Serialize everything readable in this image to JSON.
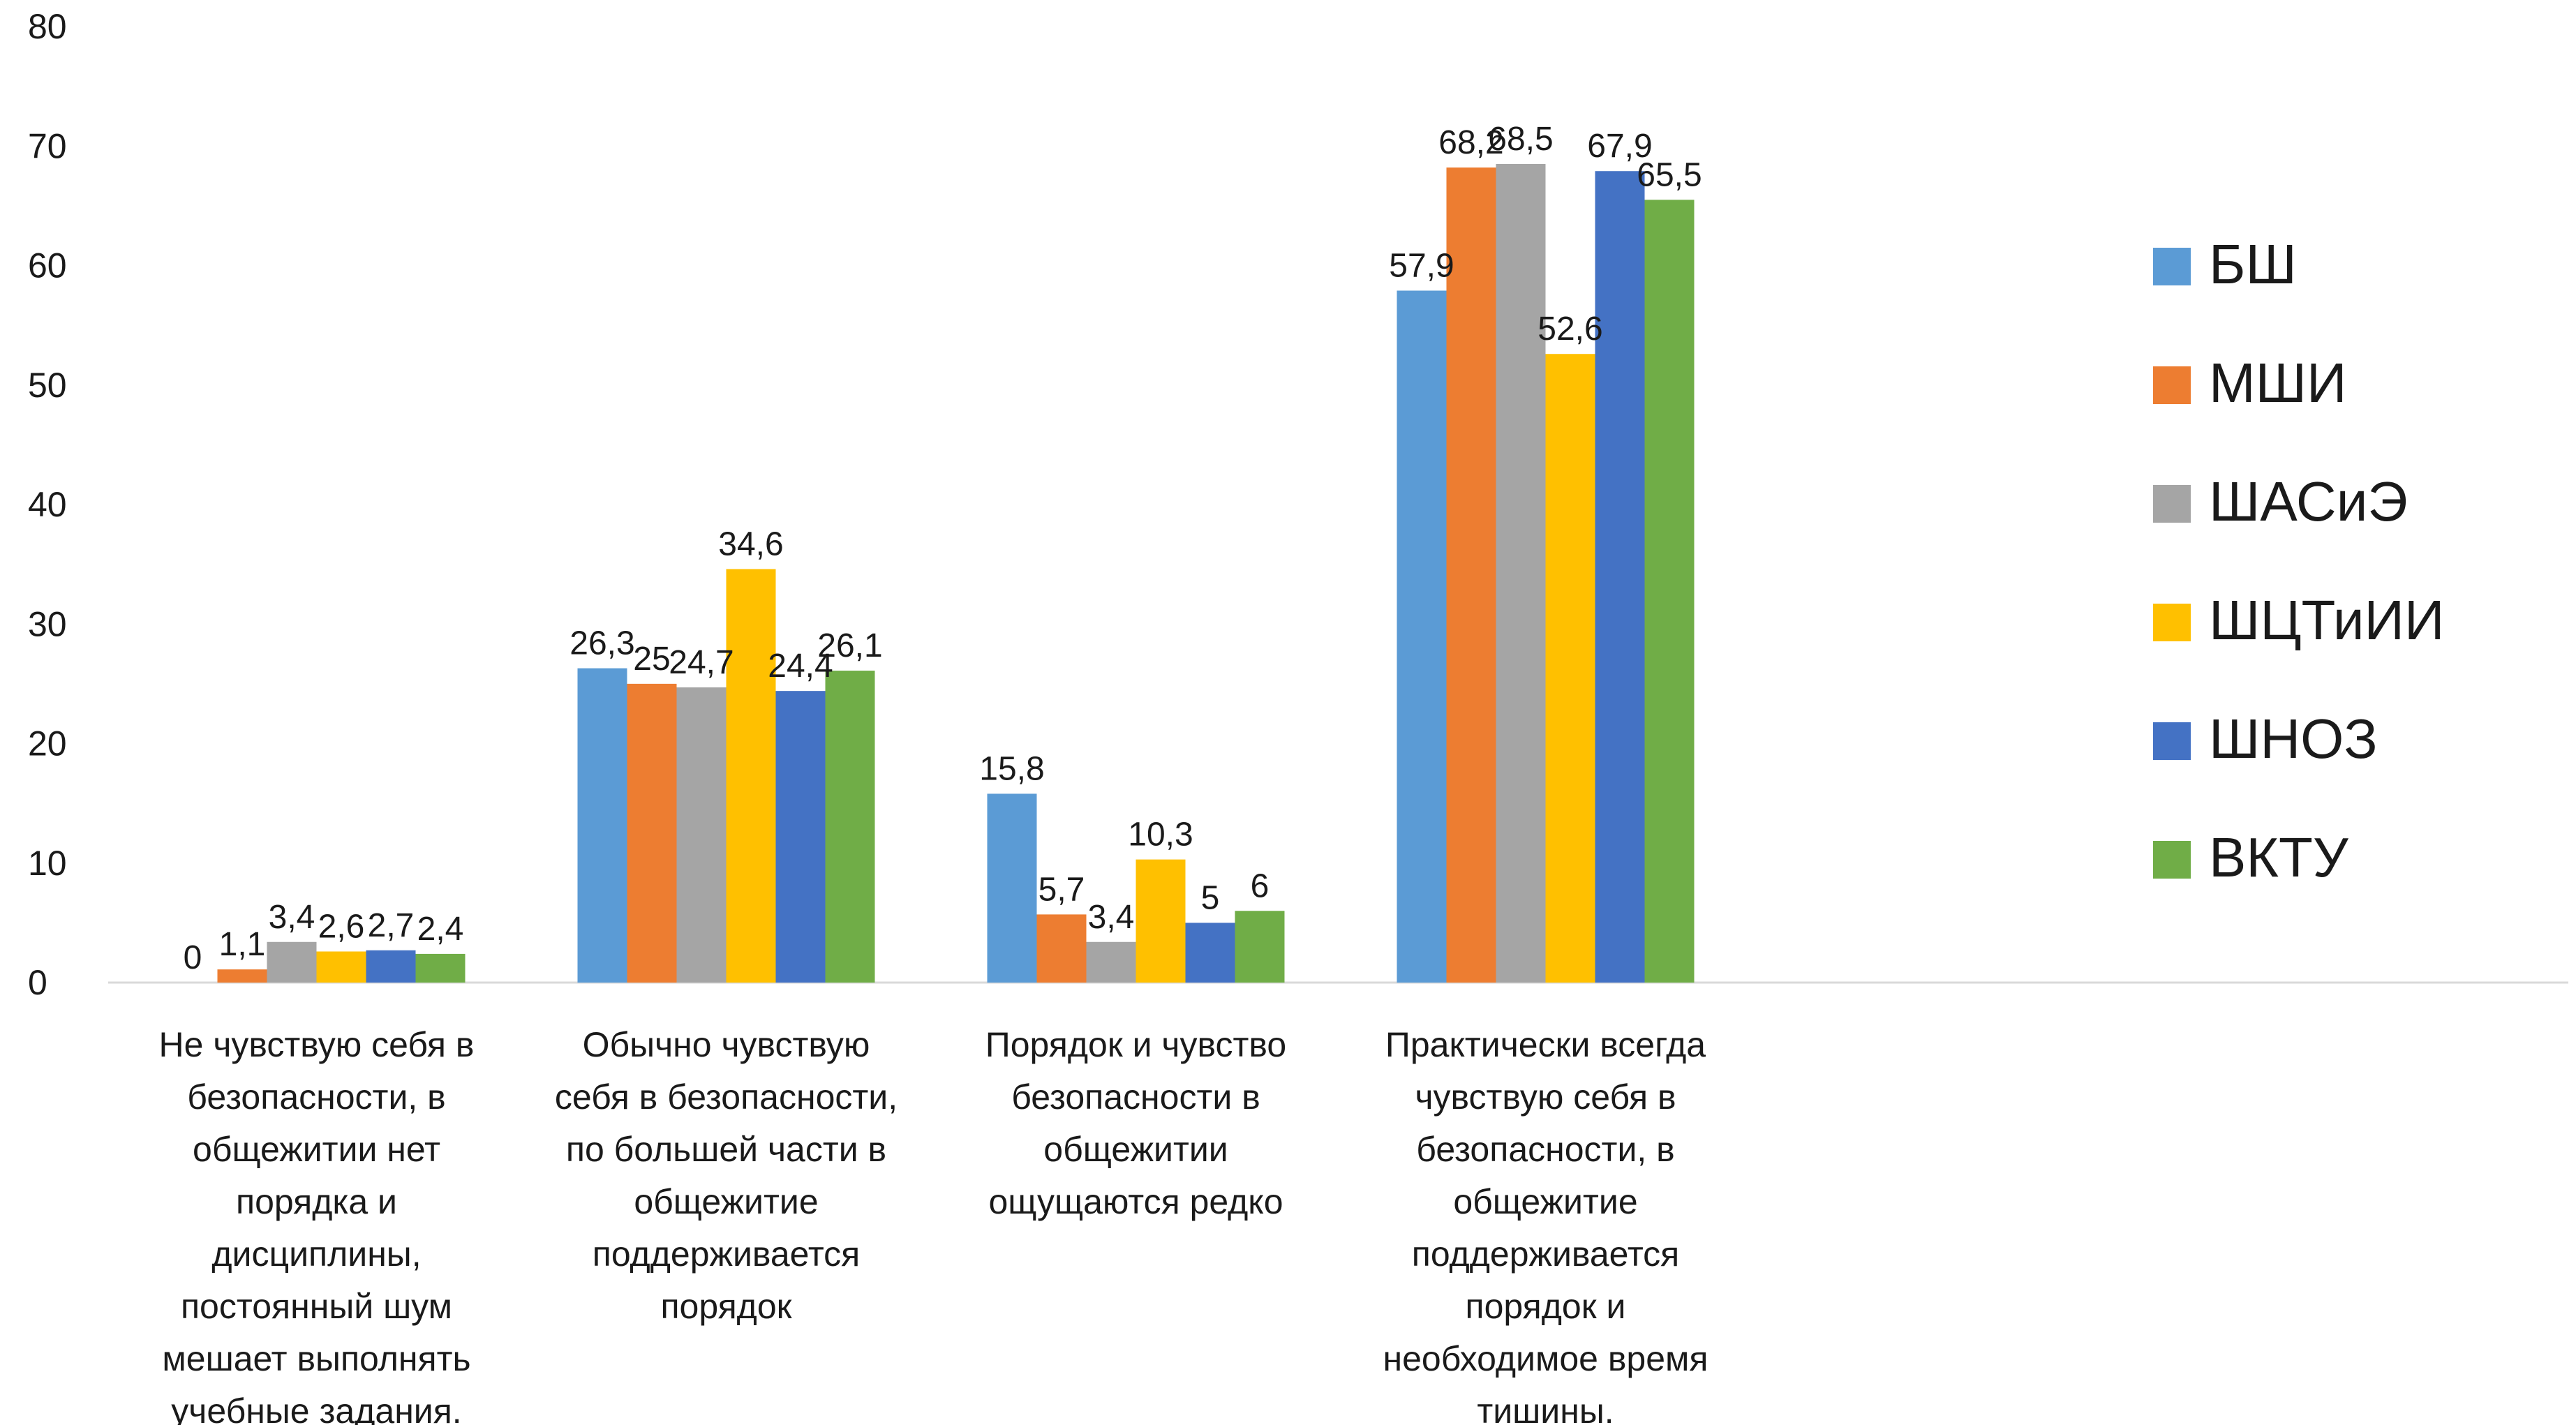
{
  "chart_data": {
    "type": "bar",
    "title": "",
    "xlabel": "",
    "ylabel": "",
    "ylim": [
      0,
      80
    ],
    "yticks": [
      0,
      10,
      20,
      30,
      40,
      50,
      60,
      70,
      80
    ],
    "grid": false,
    "legend_position": "right",
    "categories": [
      [
        "Не чувствую себя в",
        "безопасности, в",
        "общежитии нет",
        "порядка и",
        "дисциплины,",
        "постоянный шум",
        "мешает выполнять",
        "учебные задания."
      ],
      [
        "Обычно чувствую",
        "себя в безопасности,",
        "по большей части в",
        "общежитие",
        "поддерживается",
        "порядок"
      ],
      [
        "Порядок и чувство",
        "безопасности в",
        "общежитии",
        "ощущаются редко"
      ],
      [
        "Практически всегда",
        "чувствую себя в",
        "безопасности, в",
        "общежитие",
        "поддерживается",
        "порядок и",
        "необходимое время",
        "тишины."
      ]
    ],
    "series": [
      {
        "name": "БШ",
        "color": "#5B9BD5",
        "values": [
          0,
          26.3,
          15.8,
          57.9
        ],
        "labels": [
          "0",
          "26,3",
          "15,8",
          "57,9"
        ]
      },
      {
        "name": "МШИ",
        "color": "#ED7D31",
        "values": [
          1.1,
          25,
          5.7,
          68.2
        ],
        "labels": [
          "1,1",
          "25",
          "5,7",
          "68,2"
        ]
      },
      {
        "name": "ШАСиЭ",
        "color": "#A5A5A5",
        "values": [
          3.4,
          24.7,
          3.4,
          68.5
        ],
        "labels": [
          "3,4",
          "24,7",
          "3,4",
          "68,5"
        ]
      },
      {
        "name": "ШЦТиИИ",
        "color": "#FFC000",
        "values": [
          2.6,
          34.6,
          10.3,
          52.6
        ],
        "labels": [
          "2,6",
          "34,6",
          "10,3",
          "52,6"
        ]
      },
      {
        "name": "ШНОЗ",
        "color": "#4472C4",
        "values": [
          2.7,
          24.4,
          5,
          67.9
        ],
        "labels": [
          "2,7",
          "24,4",
          "5",
          "67,9"
        ]
      },
      {
        "name": "ВКТУ",
        "color": "#70AD47",
        "values": [
          2.4,
          26.1,
          6,
          65.5
        ],
        "labels": [
          "2,4",
          "26,1",
          "6",
          "65,5"
        ]
      }
    ]
  }
}
